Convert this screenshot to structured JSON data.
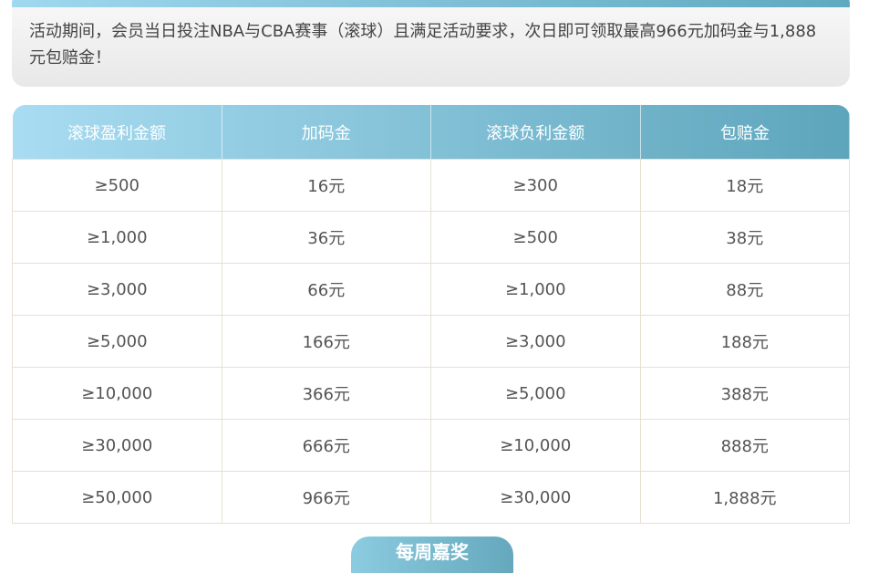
{
  "intro": {
    "text": "活动期间，会员当日投注NBA与CBA赛事（滚球）且满足活动要求，次日即可领取最高966元加码金与1,888元包赔金！"
  },
  "table": {
    "headers": [
      "滚球盈利金额",
      "加码金",
      "滚球负利金额",
      "包赔金"
    ],
    "rows": [
      [
        "≥500",
        "16元",
        "≥300",
        "18元"
      ],
      [
        "≥1,000",
        "36元",
        "≥500",
        "38元"
      ],
      [
        "≥3,000",
        "66元",
        "≥1,000",
        "88元"
      ],
      [
        "≥5,000",
        "166元",
        "≥3,000",
        "188元"
      ],
      [
        "≥10,000",
        "366元",
        "≥5,000",
        "388元"
      ],
      [
        "≥30,000",
        "666元",
        "≥10,000",
        "888元"
      ],
      [
        "≥50,000",
        "966元",
        "≥30,000",
        "1,888元"
      ]
    ]
  },
  "next_section": {
    "title": "每周嘉奖"
  }
}
